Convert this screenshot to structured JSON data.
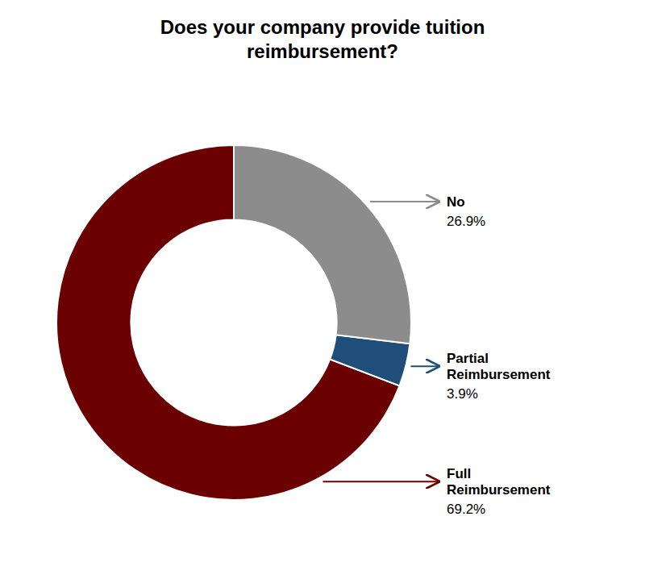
{
  "chart_data": {
    "type": "donut",
    "title": "Does your company provide tuition\nreimbursement?",
    "categories": [
      "Full\nReimbursement",
      "Partial\nReimbursement",
      "No"
    ],
    "values": [
      69.2,
      3.9,
      26.9
    ],
    "value_labels": [
      "69.2%",
      "3.9%",
      "26.9%"
    ],
    "colors": [
      "#6B0000",
      "#1F4E79",
      "#8C8C8C"
    ],
    "data_labels": true
  }
}
